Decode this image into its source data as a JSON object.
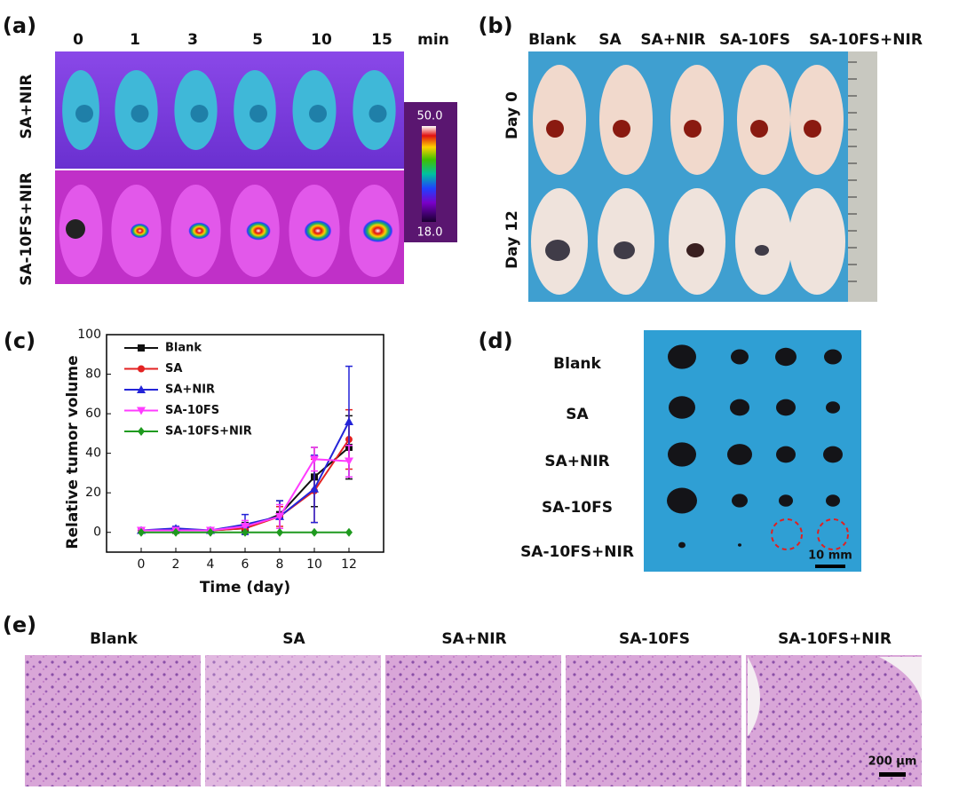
{
  "panel_a": {
    "label": "(a)",
    "times": [
      "0",
      "1",
      "3",
      "5",
      "10",
      "15"
    ],
    "unit": "min",
    "rows": [
      "SA+NIR",
      "SA-10FS+NIR"
    ],
    "scale_max": "50.0",
    "scale_min": "18.0"
  },
  "panel_b": {
    "label": "(b)",
    "groups": [
      "Blank",
      "SA",
      "SA+NIR",
      "SA-10FS",
      "SA-10FS+NIR"
    ],
    "rows": [
      "Day 0",
      "Day 12"
    ]
  },
  "panel_c": {
    "label": "(c)"
  },
  "panel_d": {
    "label": "(d)",
    "rows": [
      "Blank",
      "SA",
      "SA+NIR",
      "SA-10FS",
      "SA-10FS+NIR"
    ],
    "scale_bar": "10 mm"
  },
  "panel_e": {
    "label": "(e)",
    "groups": [
      "Blank",
      "SA",
      "SA+NIR",
      "SA-10FS",
      "SA-10FS+NIR"
    ],
    "scale_bar": "200 μm"
  },
  "chart_data": {
    "type": "line",
    "x_label": "Time (day)",
    "y_label": "Relative tumor volume",
    "x": [
      0,
      2,
      4,
      6,
      8,
      10,
      12
    ],
    "xlim": [
      -2,
      14
    ],
    "xticks": [
      0,
      2,
      4,
      6,
      8,
      10,
      12
    ],
    "ylim": [
      -10,
      100
    ],
    "yticks": [
      0,
      20,
      40,
      60,
      80,
      100
    ],
    "series": [
      {
        "name": "Blank",
        "color": "#111111",
        "marker": "square",
        "values": [
          1,
          1,
          1,
          2,
          9,
          28,
          43
        ],
        "errors": [
          0.5,
          1,
          0.5,
          3,
          7,
          15,
          16
        ]
      },
      {
        "name": "SA",
        "color": "#e32222",
        "marker": "circle",
        "values": [
          1,
          1,
          1,
          2,
          8,
          21,
          47
        ],
        "errors": [
          0.5,
          1,
          0.5,
          2,
          5,
          16,
          15
        ]
      },
      {
        "name": "SA+NIR",
        "color": "#2424d8",
        "marker": "triangle-up",
        "values": [
          1,
          2,
          1,
          4,
          8,
          22,
          56
        ],
        "errors": [
          0.5,
          1,
          0.5,
          5,
          8,
          17,
          28
        ]
      },
      {
        "name": "SA-10FS",
        "color": "#ff3cff",
        "marker": "triangle-down",
        "values": [
          1,
          1,
          1,
          3,
          8,
          37,
          36
        ],
        "errors": [
          0.5,
          1,
          1,
          3,
          6,
          6,
          8
        ]
      },
      {
        "name": "SA-10FS+NIR",
        "color": "#1f9a1f",
        "marker": "diamond",
        "values": [
          0,
          0,
          0,
          0,
          0,
          0,
          0
        ],
        "errors": [
          0,
          0,
          0,
          0,
          0,
          0,
          0
        ]
      }
    ]
  }
}
